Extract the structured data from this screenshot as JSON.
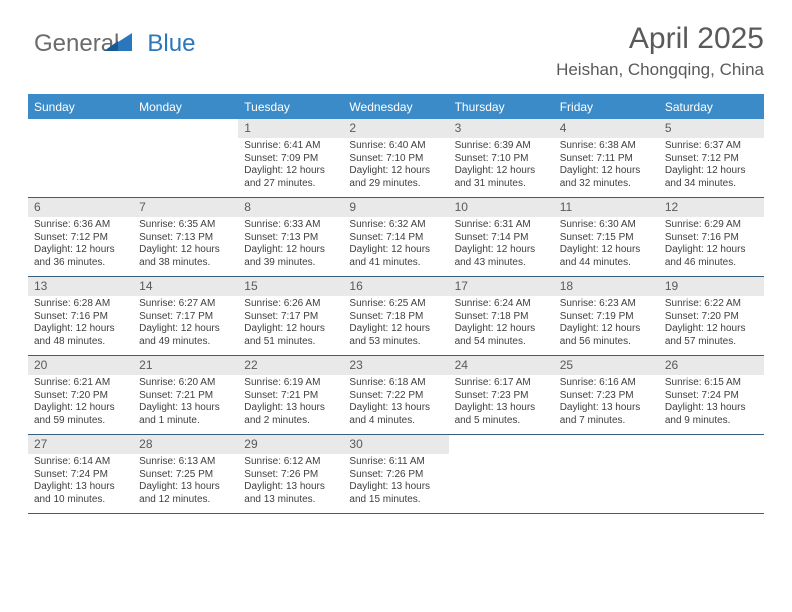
{
  "logo": {
    "part1": "General",
    "part2": "Blue"
  },
  "title": "April 2025",
  "location": "Heishan, Chongqing, China",
  "colors": {
    "header_bg": "#3b8bc9",
    "header_text": "#ffffff",
    "rule": "#3a5f7d",
    "daynum_bg": "#e9e9e9",
    "text": "#3f3f3f",
    "title_text": "#5a5a5a",
    "logo_gray": "#6b6b6b",
    "logo_blue": "#2a77bd"
  },
  "daysOfWeek": [
    "Sunday",
    "Monday",
    "Tuesday",
    "Wednesday",
    "Thursday",
    "Friday",
    "Saturday"
  ],
  "weeks": [
    [
      {
        "n": "",
        "sunrise": "",
        "sunset": "",
        "daylight1": "",
        "daylight2": ""
      },
      {
        "n": "",
        "sunrise": "",
        "sunset": "",
        "daylight1": "",
        "daylight2": ""
      },
      {
        "n": "1",
        "sunrise": "Sunrise: 6:41 AM",
        "sunset": "Sunset: 7:09 PM",
        "daylight1": "Daylight: 12 hours",
        "daylight2": "and 27 minutes."
      },
      {
        "n": "2",
        "sunrise": "Sunrise: 6:40 AM",
        "sunset": "Sunset: 7:10 PM",
        "daylight1": "Daylight: 12 hours",
        "daylight2": "and 29 minutes."
      },
      {
        "n": "3",
        "sunrise": "Sunrise: 6:39 AM",
        "sunset": "Sunset: 7:10 PM",
        "daylight1": "Daylight: 12 hours",
        "daylight2": "and 31 minutes."
      },
      {
        "n": "4",
        "sunrise": "Sunrise: 6:38 AM",
        "sunset": "Sunset: 7:11 PM",
        "daylight1": "Daylight: 12 hours",
        "daylight2": "and 32 minutes."
      },
      {
        "n": "5",
        "sunrise": "Sunrise: 6:37 AM",
        "sunset": "Sunset: 7:12 PM",
        "daylight1": "Daylight: 12 hours",
        "daylight2": "and 34 minutes."
      }
    ],
    [
      {
        "n": "6",
        "sunrise": "Sunrise: 6:36 AM",
        "sunset": "Sunset: 7:12 PM",
        "daylight1": "Daylight: 12 hours",
        "daylight2": "and 36 minutes."
      },
      {
        "n": "7",
        "sunrise": "Sunrise: 6:35 AM",
        "sunset": "Sunset: 7:13 PM",
        "daylight1": "Daylight: 12 hours",
        "daylight2": "and 38 minutes."
      },
      {
        "n": "8",
        "sunrise": "Sunrise: 6:33 AM",
        "sunset": "Sunset: 7:13 PM",
        "daylight1": "Daylight: 12 hours",
        "daylight2": "and 39 minutes."
      },
      {
        "n": "9",
        "sunrise": "Sunrise: 6:32 AM",
        "sunset": "Sunset: 7:14 PM",
        "daylight1": "Daylight: 12 hours",
        "daylight2": "and 41 minutes."
      },
      {
        "n": "10",
        "sunrise": "Sunrise: 6:31 AM",
        "sunset": "Sunset: 7:14 PM",
        "daylight1": "Daylight: 12 hours",
        "daylight2": "and 43 minutes."
      },
      {
        "n": "11",
        "sunrise": "Sunrise: 6:30 AM",
        "sunset": "Sunset: 7:15 PM",
        "daylight1": "Daylight: 12 hours",
        "daylight2": "and 44 minutes."
      },
      {
        "n": "12",
        "sunrise": "Sunrise: 6:29 AM",
        "sunset": "Sunset: 7:16 PM",
        "daylight1": "Daylight: 12 hours",
        "daylight2": "and 46 minutes."
      }
    ],
    [
      {
        "n": "13",
        "sunrise": "Sunrise: 6:28 AM",
        "sunset": "Sunset: 7:16 PM",
        "daylight1": "Daylight: 12 hours",
        "daylight2": "and 48 minutes."
      },
      {
        "n": "14",
        "sunrise": "Sunrise: 6:27 AM",
        "sunset": "Sunset: 7:17 PM",
        "daylight1": "Daylight: 12 hours",
        "daylight2": "and 49 minutes."
      },
      {
        "n": "15",
        "sunrise": "Sunrise: 6:26 AM",
        "sunset": "Sunset: 7:17 PM",
        "daylight1": "Daylight: 12 hours",
        "daylight2": "and 51 minutes."
      },
      {
        "n": "16",
        "sunrise": "Sunrise: 6:25 AM",
        "sunset": "Sunset: 7:18 PM",
        "daylight1": "Daylight: 12 hours",
        "daylight2": "and 53 minutes."
      },
      {
        "n": "17",
        "sunrise": "Sunrise: 6:24 AM",
        "sunset": "Sunset: 7:18 PM",
        "daylight1": "Daylight: 12 hours",
        "daylight2": "and 54 minutes."
      },
      {
        "n": "18",
        "sunrise": "Sunrise: 6:23 AM",
        "sunset": "Sunset: 7:19 PM",
        "daylight1": "Daylight: 12 hours",
        "daylight2": "and 56 minutes."
      },
      {
        "n": "19",
        "sunrise": "Sunrise: 6:22 AM",
        "sunset": "Sunset: 7:20 PM",
        "daylight1": "Daylight: 12 hours",
        "daylight2": "and 57 minutes."
      }
    ],
    [
      {
        "n": "20",
        "sunrise": "Sunrise: 6:21 AM",
        "sunset": "Sunset: 7:20 PM",
        "daylight1": "Daylight: 12 hours",
        "daylight2": "and 59 minutes."
      },
      {
        "n": "21",
        "sunrise": "Sunrise: 6:20 AM",
        "sunset": "Sunset: 7:21 PM",
        "daylight1": "Daylight: 13 hours",
        "daylight2": "and 1 minute."
      },
      {
        "n": "22",
        "sunrise": "Sunrise: 6:19 AM",
        "sunset": "Sunset: 7:21 PM",
        "daylight1": "Daylight: 13 hours",
        "daylight2": "and 2 minutes."
      },
      {
        "n": "23",
        "sunrise": "Sunrise: 6:18 AM",
        "sunset": "Sunset: 7:22 PM",
        "daylight1": "Daylight: 13 hours",
        "daylight2": "and 4 minutes."
      },
      {
        "n": "24",
        "sunrise": "Sunrise: 6:17 AM",
        "sunset": "Sunset: 7:23 PM",
        "daylight1": "Daylight: 13 hours",
        "daylight2": "and 5 minutes."
      },
      {
        "n": "25",
        "sunrise": "Sunrise: 6:16 AM",
        "sunset": "Sunset: 7:23 PM",
        "daylight1": "Daylight: 13 hours",
        "daylight2": "and 7 minutes."
      },
      {
        "n": "26",
        "sunrise": "Sunrise: 6:15 AM",
        "sunset": "Sunset: 7:24 PM",
        "daylight1": "Daylight: 13 hours",
        "daylight2": "and 9 minutes."
      }
    ],
    [
      {
        "n": "27",
        "sunrise": "Sunrise: 6:14 AM",
        "sunset": "Sunset: 7:24 PM",
        "daylight1": "Daylight: 13 hours",
        "daylight2": "and 10 minutes."
      },
      {
        "n": "28",
        "sunrise": "Sunrise: 6:13 AM",
        "sunset": "Sunset: 7:25 PM",
        "daylight1": "Daylight: 13 hours",
        "daylight2": "and 12 minutes."
      },
      {
        "n": "29",
        "sunrise": "Sunrise: 6:12 AM",
        "sunset": "Sunset: 7:26 PM",
        "daylight1": "Daylight: 13 hours",
        "daylight2": "and 13 minutes."
      },
      {
        "n": "30",
        "sunrise": "Sunrise: 6:11 AM",
        "sunset": "Sunset: 7:26 PM",
        "daylight1": "Daylight: 13 hours",
        "daylight2": "and 15 minutes."
      },
      {
        "n": "",
        "sunrise": "",
        "sunset": "",
        "daylight1": "",
        "daylight2": ""
      },
      {
        "n": "",
        "sunrise": "",
        "sunset": "",
        "daylight1": "",
        "daylight2": ""
      },
      {
        "n": "",
        "sunrise": "",
        "sunset": "",
        "daylight1": "",
        "daylight2": ""
      }
    ]
  ]
}
